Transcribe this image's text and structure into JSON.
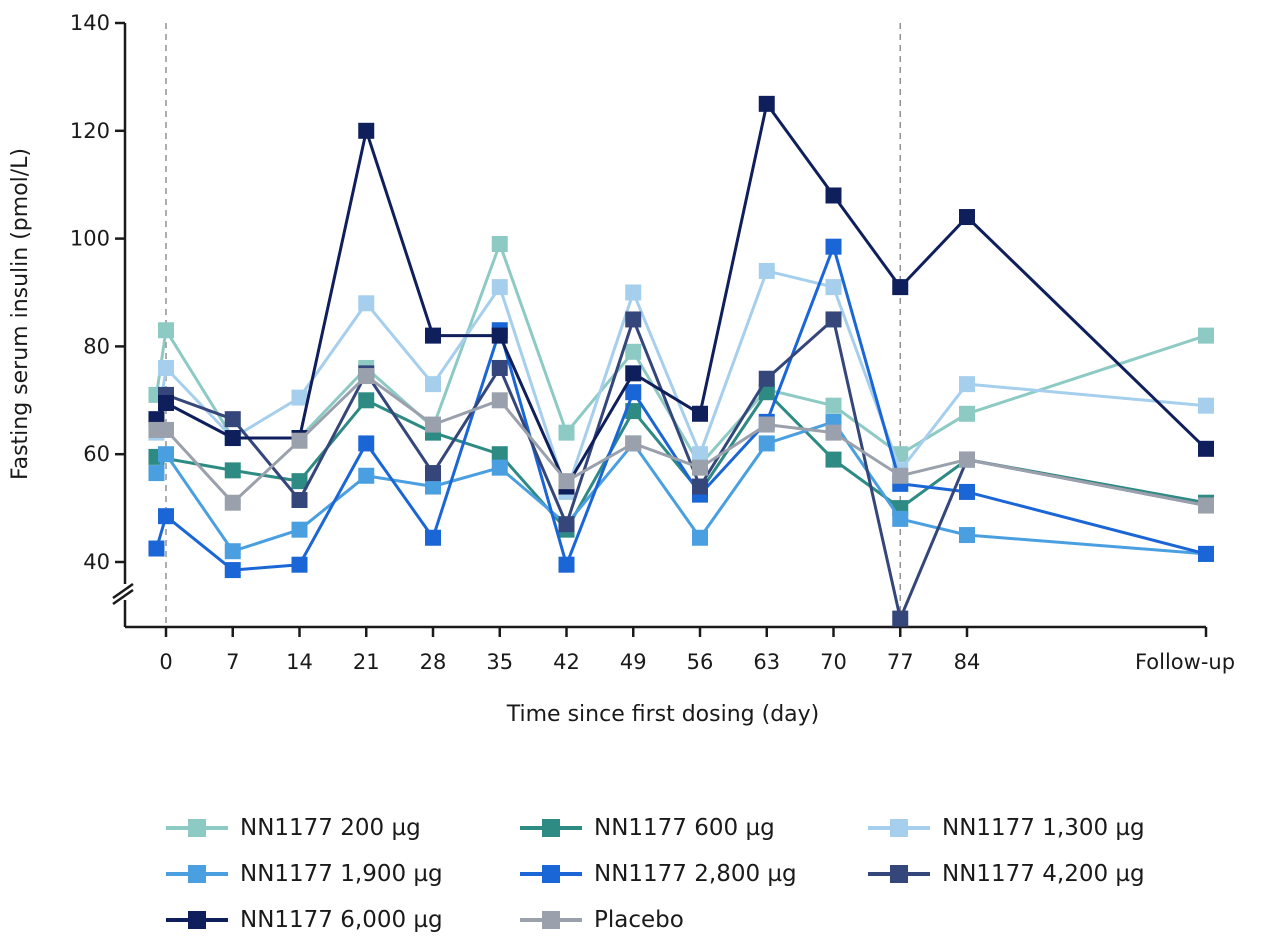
{
  "chart_data": {
    "type": "line",
    "title": "",
    "xlabel": "Time since first dosing (day)",
    "ylabel": "Fasting serum insulin (pmol/L)",
    "ylim": [
      30,
      140
    ],
    "yticks": [
      40,
      60,
      80,
      100,
      120,
      140
    ],
    "axis_break": "y",
    "categories": [
      "0",
      "7",
      "14",
      "21",
      "28",
      "35",
      "42",
      "49",
      "56",
      "63",
      "70",
      "77",
      "84",
      "Follow-up"
    ],
    "x_positions": [
      0,
      7,
      14,
      21,
      28,
      35,
      42,
      49,
      56,
      63,
      70,
      77,
      84,
      109
    ],
    "reference_lines_x": [
      0,
      77
    ],
    "legend_placement": "bottom",
    "grid": false,
    "series": [
      {
        "name": "NN1177 200 µg",
        "color": "#8ecac4",
        "points": [
          [
            -1,
            71
          ],
          [
            0,
            83
          ],
          [
            7,
            63
          ],
          [
            14,
            63
          ],
          [
            21,
            76
          ],
          [
            28,
            65
          ],
          [
            35,
            99
          ],
          [
            42,
            64
          ],
          [
            49,
            79
          ],
          [
            56,
            58
          ],
          [
            63,
            72
          ],
          [
            70,
            69
          ],
          [
            77,
            60
          ],
          [
            84,
            67.5
          ],
          [
            109,
            82
          ]
        ]
      },
      {
        "name": "NN1177 600 µg",
        "color": "#2e8b83",
        "points": [
          [
            -1,
            59.5
          ],
          [
            7,
            57
          ],
          [
            14,
            55
          ],
          [
            21,
            70
          ],
          [
            28,
            64
          ],
          [
            35,
            60
          ],
          [
            42,
            46
          ],
          [
            49,
            68
          ],
          [
            56,
            53
          ],
          [
            63,
            71.5
          ],
          [
            70,
            59
          ],
          [
            77,
            50
          ],
          [
            84,
            59
          ],
          [
            109,
            51
          ]
        ]
      },
      {
        "name": "NN1177 1,300 µg",
        "color": "#a6cfee",
        "points": [
          [
            -1,
            64
          ],
          [
            0,
            76
          ],
          [
            7,
            63
          ],
          [
            14,
            70.5
          ],
          [
            21,
            88
          ],
          [
            28,
            73
          ],
          [
            35,
            91
          ],
          [
            42,
            53
          ],
          [
            49,
            90
          ],
          [
            56,
            60
          ],
          [
            63,
            94
          ],
          [
            70,
            91
          ],
          [
            77,
            57
          ],
          [
            84,
            73
          ],
          [
            109,
            69
          ]
        ]
      },
      {
        "name": "NN1177 1,900 µg",
        "color": "#4a9fe0",
        "points": [
          [
            -1,
            56.5
          ],
          [
            0,
            60
          ],
          [
            7,
            42
          ],
          [
            14,
            46
          ],
          [
            21,
            56
          ],
          [
            28,
            54
          ],
          [
            35,
            57.5
          ],
          [
            42,
            47
          ],
          [
            49,
            62
          ],
          [
            56,
            44.5
          ],
          [
            63,
            62
          ],
          [
            70,
            66
          ],
          [
            77,
            48
          ],
          [
            84,
            45
          ],
          [
            109,
            41.5
          ]
        ]
      },
      {
        "name": "NN1177 2,800 µg",
        "color": "#1a66d6",
        "points": [
          [
            -1,
            42.5
          ],
          [
            0,
            48.5
          ],
          [
            7,
            38.5
          ],
          [
            14,
            39.5
          ],
          [
            21,
            62
          ],
          [
            28,
            44.5
          ],
          [
            35,
            83
          ],
          [
            42,
            39.5
          ],
          [
            49,
            71.5
          ],
          [
            56,
            52.5
          ],
          [
            63,
            66
          ],
          [
            70,
            98.5
          ],
          [
            77,
            54.5
          ],
          [
            84,
            53
          ],
          [
            109,
            41.5
          ]
        ]
      },
      {
        "name": "NN1177 4,200 µg",
        "color": "#34467a",
        "points": [
          [
            0,
            71
          ],
          [
            7,
            66.5
          ],
          [
            14,
            51.5
          ],
          [
            21,
            75
          ],
          [
            28,
            56.5
          ],
          [
            35,
            76
          ],
          [
            42,
            47
          ],
          [
            49,
            85
          ],
          [
            56,
            54
          ],
          [
            63,
            74
          ],
          [
            70,
            85
          ],
          [
            77,
            29.5
          ],
          [
            84,
            59
          ],
          [
            109,
            50.5
          ]
        ]
      },
      {
        "name": "NN1177 6,000 µg",
        "color": "#0f1f5c",
        "points": [
          [
            -1,
            66.5
          ],
          [
            0,
            69.5
          ],
          [
            7,
            63
          ],
          [
            14,
            63
          ],
          [
            21,
            120
          ],
          [
            28,
            82
          ],
          [
            35,
            82
          ],
          [
            42,
            54
          ],
          [
            49,
            75
          ],
          [
            56,
            67.5
          ],
          [
            63,
            125
          ],
          [
            70,
            108
          ],
          [
            77,
            91
          ],
          [
            84,
            104
          ],
          [
            109,
            61
          ]
        ]
      },
      {
        "name": "Placebo",
        "color": "#9aa1ac",
        "points": [
          [
            -1,
            64.5
          ],
          [
            0,
            64.5
          ],
          [
            7,
            51
          ],
          [
            14,
            62.5
          ],
          [
            21,
            74.5
          ],
          [
            28,
            65.5
          ],
          [
            35,
            70
          ],
          [
            42,
            55
          ],
          [
            49,
            62
          ],
          [
            56,
            57.5
          ],
          [
            63,
            65.5
          ],
          [
            70,
            64
          ],
          [
            77,
            56
          ],
          [
            84,
            59
          ],
          [
            109,
            50.5
          ]
        ]
      }
    ]
  },
  "legend": {
    "items": [
      {
        "label": "NN1177 200 µg",
        "color": "#8ecac4"
      },
      {
        "label": "NN1177 600 µg",
        "color": "#2e8b83"
      },
      {
        "label": "NN1177 1,300 µg",
        "color": "#a6cfee"
      },
      {
        "label": "NN1177 1,900 µg",
        "color": "#4a9fe0"
      },
      {
        "label": "NN1177 2,800 µg",
        "color": "#1a66d6"
      },
      {
        "label": "NN1177 4,200 µg",
        "color": "#34467a"
      },
      {
        "label": "NN1177 6,000 µg",
        "color": "#0f1f5c"
      },
      {
        "label": "Placebo",
        "color": "#9aa1ac"
      }
    ]
  }
}
